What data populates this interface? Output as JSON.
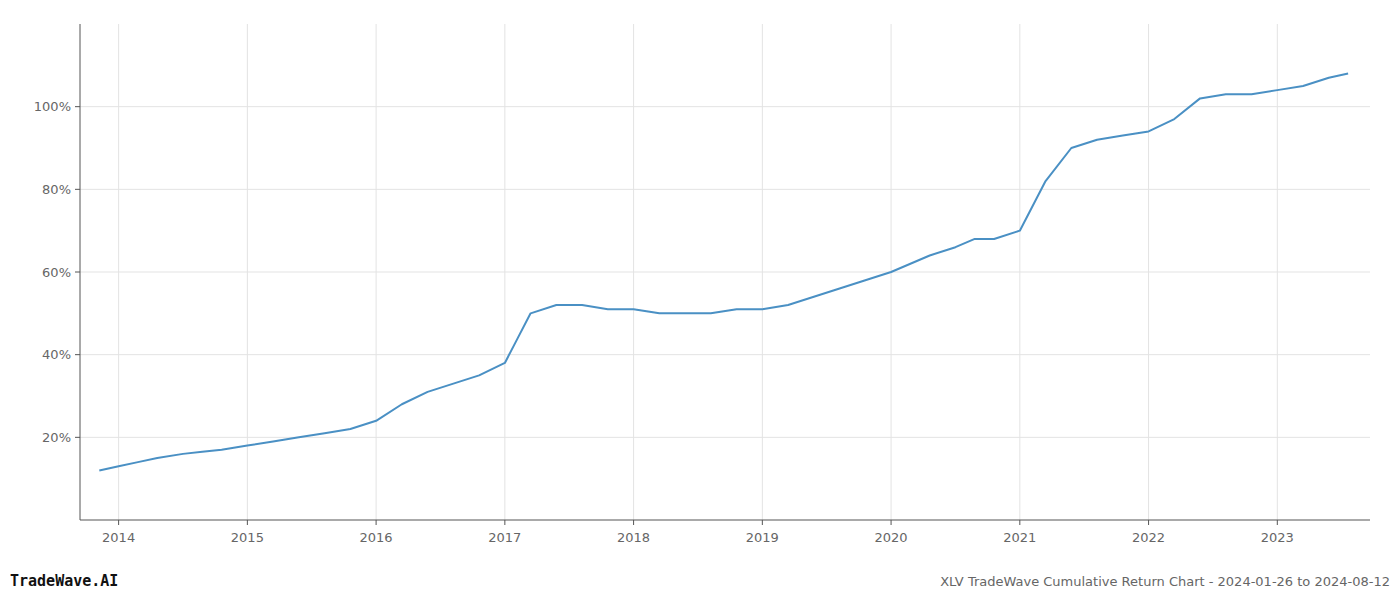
{
  "chart_data": {
    "type": "line",
    "title": "XLV TradeWave Cumulative Return Chart - 2024-01-26 to 2024-08-12",
    "annotations": [
      "TradeWave.AI"
    ],
    "color": "#4a90c4",
    "x": [
      2013.85,
      2014.0,
      2014.15,
      2014.3,
      2014.5,
      2014.65,
      2014.8,
      2015.0,
      2015.2,
      2015.4,
      2015.6,
      2015.8,
      2016.0,
      2016.2,
      2016.4,
      2016.6,
      2016.8,
      2017.0,
      2017.1,
      2017.2,
      2017.4,
      2017.6,
      2017.8,
      2018.0,
      2018.2,
      2018.4,
      2018.6,
      2018.8,
      2019.0,
      2019.2,
      2019.4,
      2019.6,
      2019.8,
      2020.0,
      2020.15,
      2020.3,
      2020.5,
      2020.65,
      2020.8,
      2021.0,
      2021.2,
      2021.4,
      2021.6,
      2021.8,
      2022.0,
      2022.2,
      2022.4,
      2022.6,
      2022.8,
      2023.0,
      2023.2,
      2023.4,
      2023.55
    ],
    "values": [
      12,
      13,
      14,
      15,
      16,
      16.5,
      17,
      18,
      19,
      20,
      21,
      22,
      24,
      28,
      31,
      33,
      35,
      38,
      44,
      50,
      52,
      52,
      51,
      51,
      50,
      50,
      50,
      51,
      51,
      52,
      54,
      56,
      58,
      60,
      62,
      64,
      66,
      68,
      68,
      70,
      82,
      90,
      92,
      93,
      94,
      97,
      102,
      103,
      103,
      104,
      105,
      107,
      108
    ],
    "xlim": [
      2013.7,
      2023.72
    ],
    "ylim": [
      0,
      120
    ],
    "xticks": [
      2014,
      2015,
      2016,
      2017,
      2018,
      2019,
      2020,
      2021,
      2022,
      2023
    ],
    "yticks": [
      {
        "value": 20,
        "label": "20%"
      },
      {
        "value": 40,
        "label": "40%"
      },
      {
        "value": 60,
        "label": "60%"
      },
      {
        "value": 80,
        "label": "80%"
      },
      {
        "value": 100,
        "label": "100%"
      }
    ],
    "grid": true
  }
}
